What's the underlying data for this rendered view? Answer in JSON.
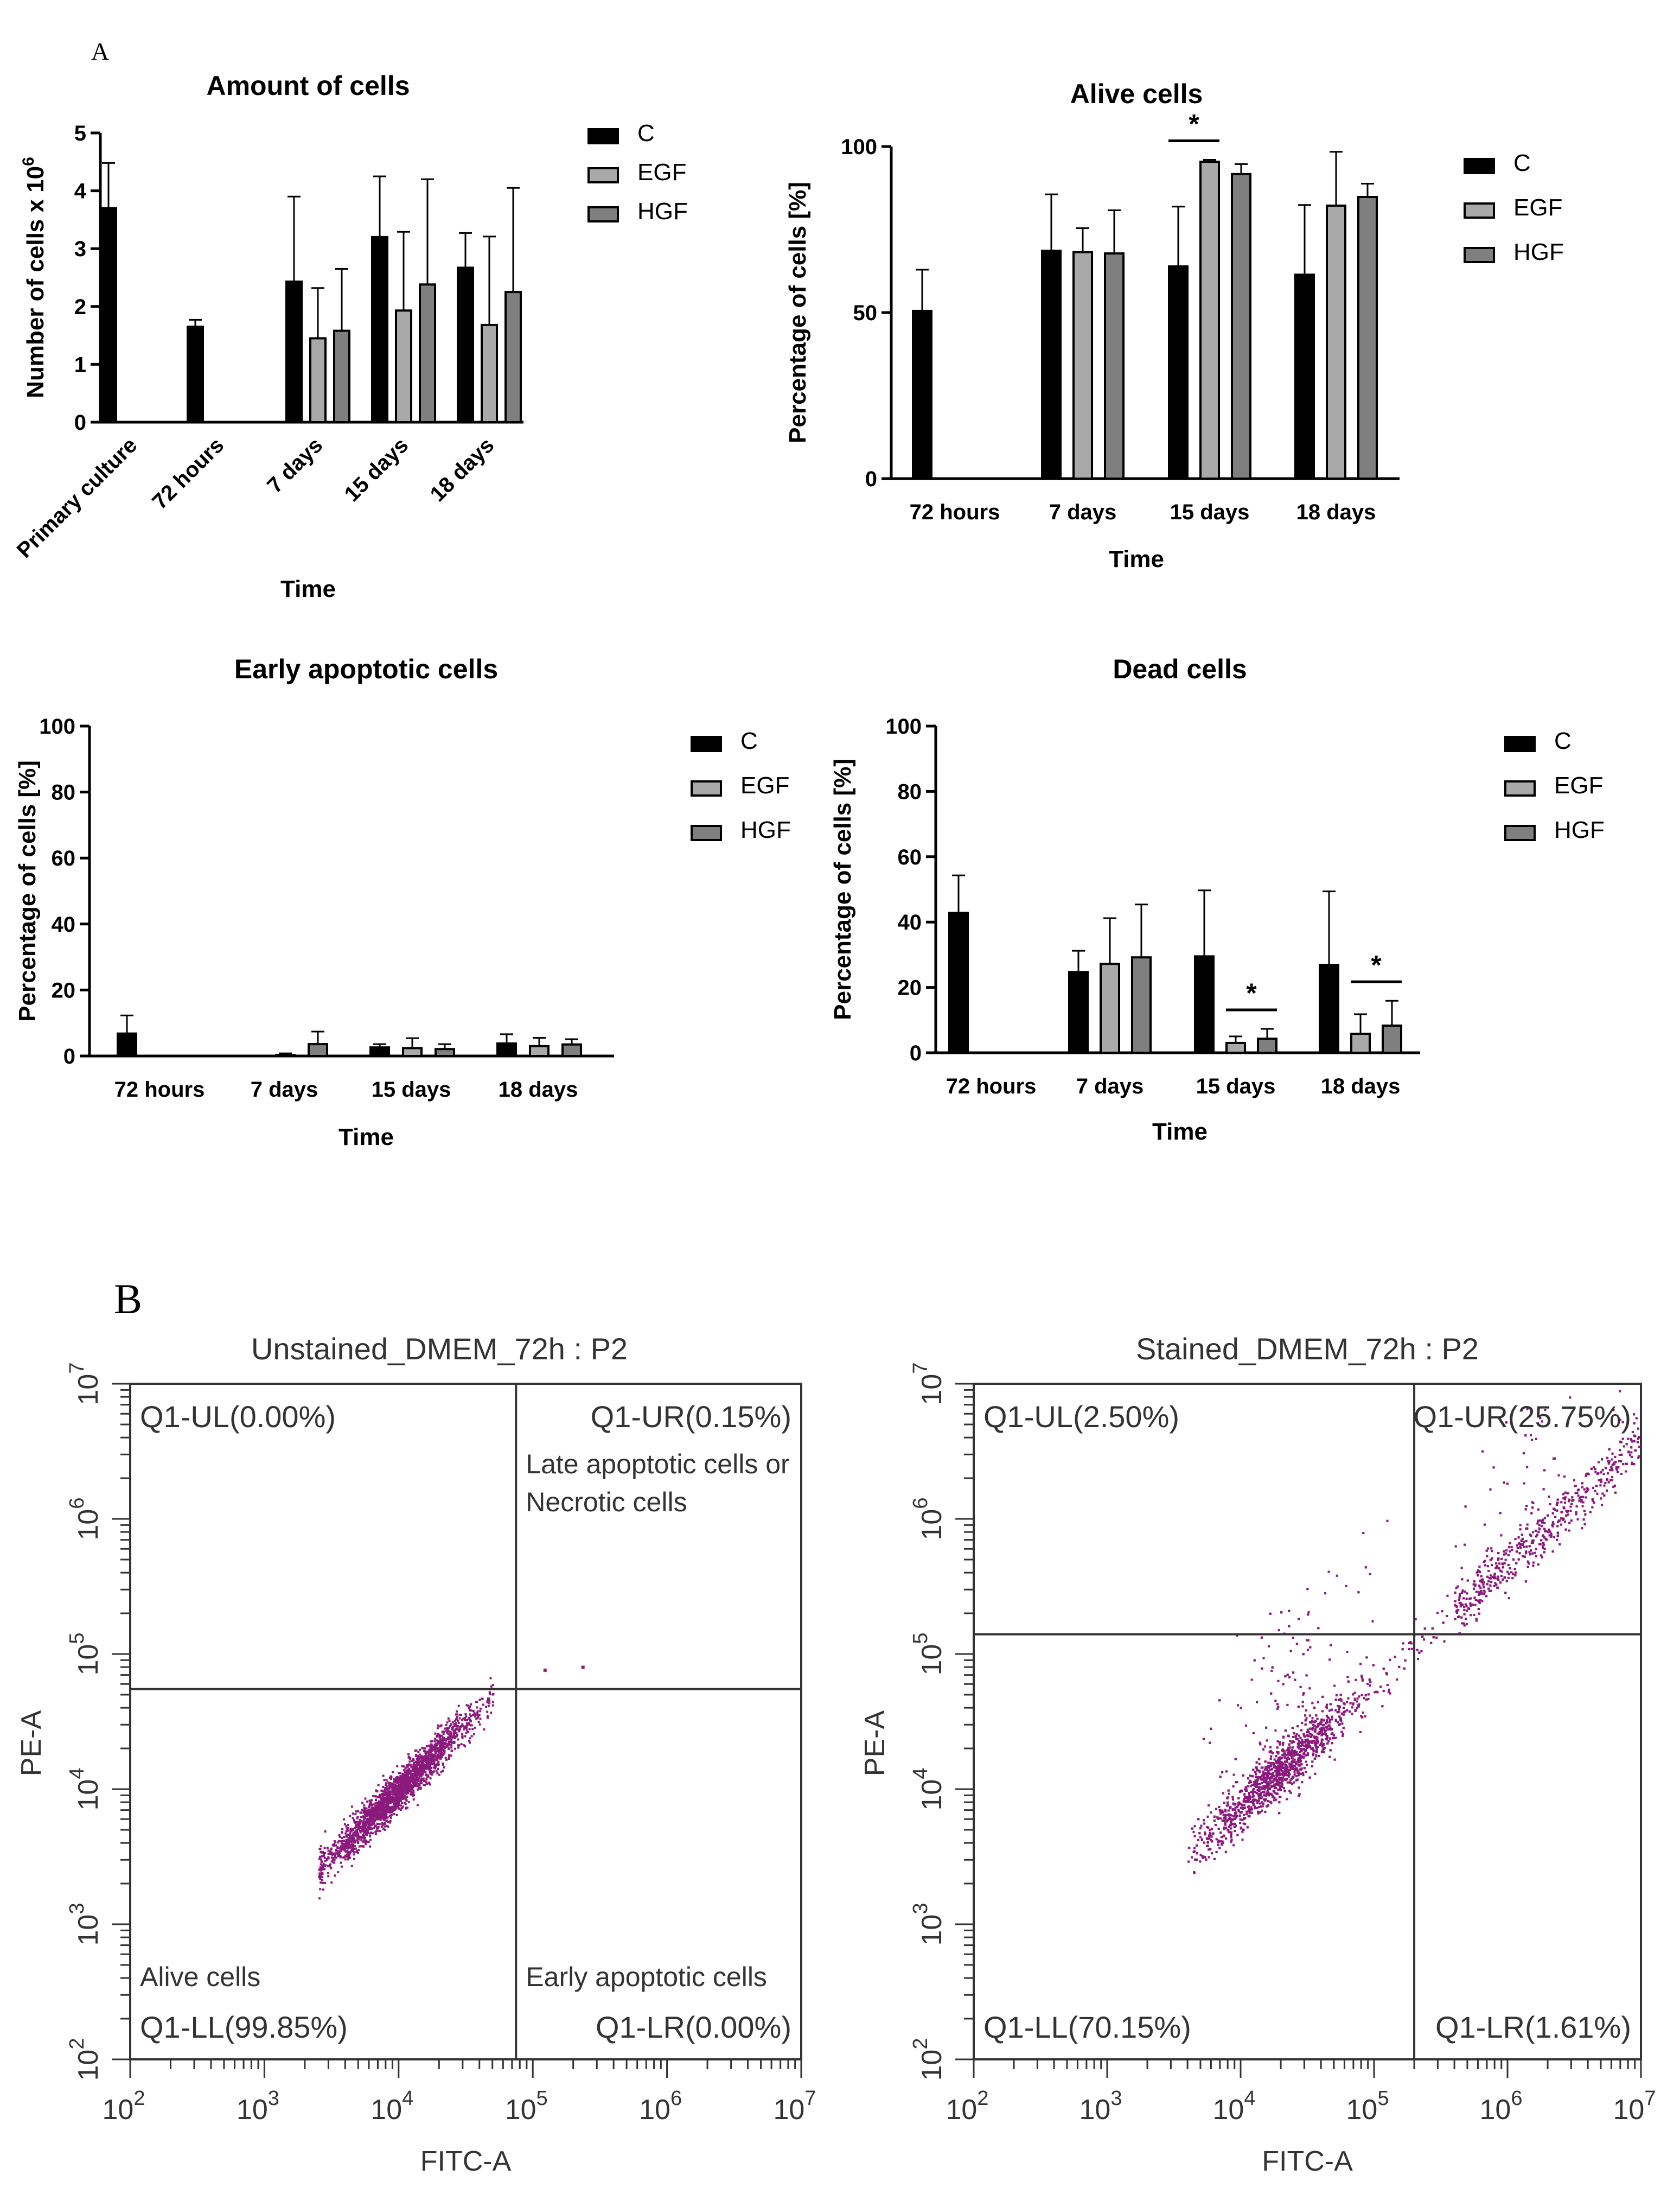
{
  "panel_labels": {
    "a": "A",
    "b": "B"
  },
  "colors": {
    "C": "#000000",
    "EGF": "#a9a9a9",
    "HGF": "#7f7f7f",
    "dots": "#8b1a7c",
    "axis": "#000000",
    "flow_axis": "#333333"
  },
  "chart_data": [
    {
      "id": "amount",
      "type": "bar",
      "title": "Amount of cells",
      "xlabel": "Time",
      "ylabel_base": "Number of cells x 10",
      "ylabel_exp": "6",
      "ylim": [
        0,
        5
      ],
      "yticks": [
        "0",
        "1",
        "2",
        "3",
        "4",
        "5"
      ],
      "categories": [
        "Primary culture",
        "72 hours",
        "7 days",
        "15 days",
        "18 days"
      ],
      "legend": [
        "C",
        "EGF",
        "HGF"
      ],
      "series": [
        {
          "name": "C",
          "values": [
            3.7,
            1.65,
            2.43,
            3.2,
            2.67
          ],
          "errors": [
            0.78,
            0.12,
            1.47,
            1.05,
            0.6
          ]
        },
        {
          "name": "EGF",
          "values": [
            null,
            null,
            1.45,
            1.93,
            1.68
          ],
          "errors": [
            null,
            null,
            0.87,
            1.36,
            1.53
          ]
        },
        {
          "name": "HGF",
          "values": [
            null,
            null,
            1.58,
            2.38,
            2.25
          ],
          "errors": [
            null,
            null,
            1.07,
            1.82,
            1.8
          ]
        }
      ],
      "significance": []
    },
    {
      "id": "alive",
      "type": "bar",
      "title": "Alive cells",
      "xlabel": "Time",
      "ylabel": "Percentage of cells [%]",
      "ylim": [
        0,
        100
      ],
      "yticks": [
        "0",
        "50",
        "100"
      ],
      "categories": [
        "72 hours",
        "7 days",
        "15 days",
        "18 days"
      ],
      "legend": [
        "C",
        "EGF",
        "HGF"
      ],
      "series": [
        {
          "name": "C",
          "values": [
            50.5,
            68.6,
            63.9,
            61.4
          ],
          "errors": [
            12.4,
            17,
            18,
            21
          ]
        },
        {
          "name": "EGF",
          "values": [
            null,
            68.2,
            95.4,
            82.2
          ],
          "errors": [
            null,
            7.2,
            0.6,
            16.2
          ]
        },
        {
          "name": "HGF",
          "values": [
            null,
            67.8,
            91.7,
            84.8
          ],
          "errors": [
            null,
            13,
            3,
            4
          ]
        }
      ],
      "significance": [
        {
          "category": 2,
          "series_from": 0,
          "series_to": 1,
          "label": "*"
        }
      ]
    },
    {
      "id": "early",
      "type": "bar",
      "title": "Early apoptotic cells",
      "xlabel": "Time",
      "ylabel": "Percentage of cells [%]",
      "ylim": [
        0,
        100
      ],
      "yticks": [
        "0",
        "20",
        "40",
        "60",
        "80",
        "100"
      ],
      "categories": [
        "72 hours",
        "7 days",
        "15 days",
        "18 days"
      ],
      "legend": [
        "C",
        "EGF",
        "HGF"
      ],
      "series": [
        {
          "name": "C",
          "values": [
            6.8,
            null,
            2.6,
            3.8
          ],
          "errors": [
            5.5,
            null,
            1,
            2.8
          ]
        },
        {
          "name": "EGF",
          "values": [
            null,
            0.3,
            2.4,
            3
          ],
          "errors": [
            null,
            0.5,
            3,
            2.5
          ]
        },
        {
          "name": "HGF",
          "values": [
            null,
            3.6,
            2.1,
            3.5
          ],
          "errors": [
            null,
            3.8,
            1.5,
            1.6
          ]
        }
      ],
      "significance": []
    },
    {
      "id": "dead",
      "type": "bar",
      "title": "Dead cells",
      "xlabel": "Time",
      "ylabel": "Percentage of cells [%]",
      "ylim": [
        0,
        100
      ],
      "yticks": [
        "0",
        "20",
        "40",
        "60",
        "80",
        "100"
      ],
      "categories": [
        "72 hours",
        "7 days",
        "15 days",
        "18 days"
      ],
      "legend": [
        "C",
        "EGF",
        "HGF"
      ],
      "series": [
        {
          "name": "C",
          "values": [
            42.8,
            24.7,
            29.5,
            26.9
          ],
          "errors": [
            11.5,
            6.5,
            20.2,
            22.5
          ]
        },
        {
          "name": "EGF",
          "values": [
            null,
            27.2,
            3,
            5.8
          ],
          "errors": [
            null,
            14,
            2,
            6
          ]
        },
        {
          "name": "HGF",
          "values": [
            null,
            29.2,
            4.3,
            8.3
          ],
          "errors": [
            null,
            16.2,
            3,
            7.6
          ]
        }
      ],
      "significance": [
        {
          "category": 2,
          "series_from": 1,
          "series_to": 2,
          "label": "*"
        },
        {
          "category": 3,
          "series_from": 1,
          "series_to": 2,
          "label": "*"
        }
      ]
    },
    {
      "id": "unstained",
      "type": "scatter",
      "title": "Unstained_DMEM_72h : P2",
      "xlabel": "FITC-A",
      "ylabel": "PE-A",
      "xscale": "log",
      "yscale": "log",
      "xlim": [
        100,
        10000000
      ],
      "ylim": [
        100,
        10000000
      ],
      "tick_base": "10",
      "tick_exps": [
        "2",
        "3",
        "4",
        "5",
        "6",
        "7"
      ],
      "gate_x": 75000,
      "gate_y": 55000,
      "quadrants": {
        "UL": "Q1-UL(0.00%)",
        "UR": "Q1-UR(0.15%)",
        "LL": "Q1-LL(99.85%)",
        "LR": "Q1-LR(0.00%)"
      },
      "notes": {
        "ur": [
          "Late apoptotic cells or",
          "Necrotic cells"
        ],
        "ll": "Alive cells",
        "lr": "Early apoptotic cells"
      },
      "population": {
        "x_center": 10000,
        "y_center": 10000,
        "x_range": [
          2500,
          50000
        ],
        "slope": 1.0,
        "spread": 0.07,
        "points": 2200,
        "outliers": [
          [
            120000,
            78000
          ],
          [
            230000,
            82000
          ]
        ]
      }
    },
    {
      "id": "stained",
      "type": "scatter",
      "title": "Stained_DMEM_72h : P2",
      "xlabel": "FITC-A",
      "ylabel": "PE-A",
      "xscale": "log",
      "yscale": "log",
      "xlim": [
        100,
        10000000
      ],
      "ylim": [
        100,
        10000000
      ],
      "tick_base": "10",
      "tick_exps": [
        "2",
        "3",
        "4",
        "5",
        "6",
        "7"
      ],
      "gate_x": 200000,
      "gate_y": 140000,
      "quadrants": {
        "UL": "Q1-UL(2.50%)",
        "UR": "Q1-UR(25.75%)",
        "LL": "Q1-LL(70.15%)",
        "LR": "Q1-LR(1.61%)"
      },
      "notes": {},
      "population": {
        "x_center": 18000,
        "y_center": 13000,
        "x_range": [
          4000,
          12000000
        ],
        "slope": 0.9,
        "spread": 0.1,
        "points": 5200,
        "outliers": []
      }
    }
  ]
}
